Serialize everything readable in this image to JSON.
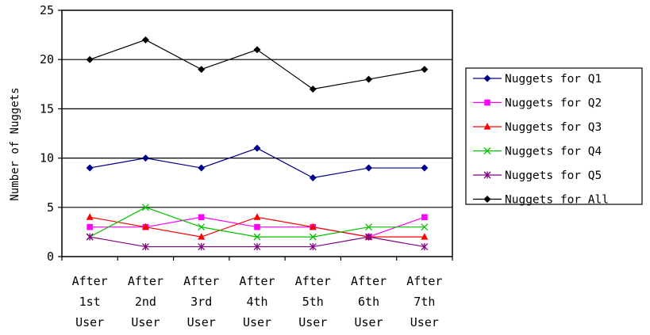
{
  "chart_data": {
    "type": "line",
    "title": "",
    "xlabel": "",
    "ylabel": "Number of Nuggets",
    "ylim": [
      0,
      25
    ],
    "yticks": [
      0,
      5,
      10,
      15,
      20,
      25
    ],
    "grid": "horizontal",
    "legend": "right",
    "categories": [
      [
        "After",
        "1st",
        "User"
      ],
      [
        "After",
        "2nd",
        "User"
      ],
      [
        "After",
        "3rd",
        "User"
      ],
      [
        "After",
        "4th",
        "User"
      ],
      [
        "After",
        "5th",
        "User"
      ],
      [
        "After",
        "6th",
        "User"
      ],
      [
        "After",
        "7th",
        "User"
      ]
    ],
    "series": [
      {
        "name": "Nuggets for Q1",
        "color": "#00008B",
        "marker": "diamond",
        "values": [
          9,
          10,
          9,
          11,
          8,
          9,
          9
        ]
      },
      {
        "name": "Nuggets for Q2",
        "color": "#FF00FF",
        "marker": "square",
        "values": [
          3,
          3,
          4,
          3,
          3,
          2,
          4
        ]
      },
      {
        "name": "Nuggets for Q3",
        "color": "#FF0000",
        "marker": "triangle",
        "values": [
          4,
          3,
          2,
          4,
          3,
          2,
          2
        ]
      },
      {
        "name": "Nuggets for Q4",
        "color": "#00C000",
        "marker": "x",
        "values": [
          2,
          5,
          3,
          2,
          2,
          3,
          3
        ]
      },
      {
        "name": "Nuggets for Q5",
        "color": "#800080",
        "marker": "star",
        "values": [
          2,
          1,
          1,
          1,
          1,
          2,
          1
        ]
      },
      {
        "name": "Nuggets for All",
        "color": "#000000",
        "marker": "diamond",
        "values": [
          20,
          22,
          19,
          21,
          17,
          18,
          19
        ]
      }
    ]
  }
}
